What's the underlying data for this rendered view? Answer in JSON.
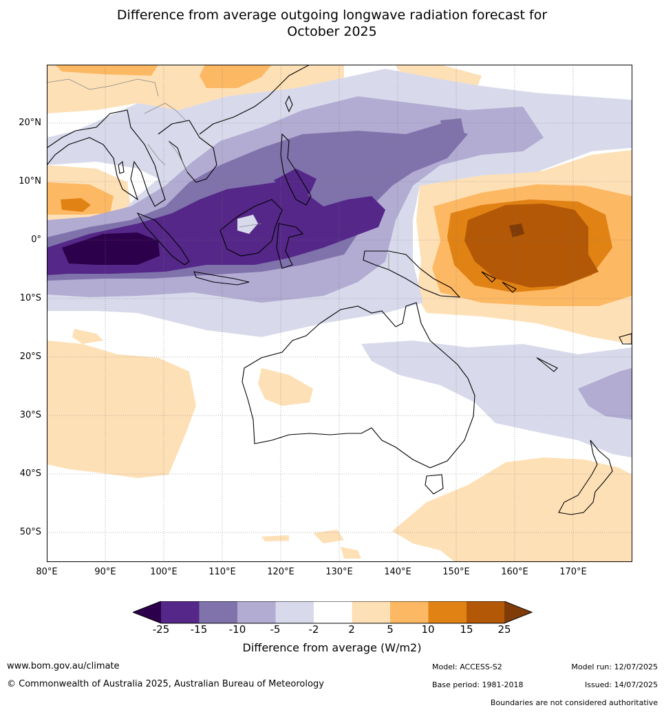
{
  "title_line1": "Difference from average outgoing longwave radiation forecast for",
  "title_line2": "October 2025",
  "map": {
    "lat_labels": [
      "20°N",
      "10°N",
      "0°",
      "10°S",
      "20°S",
      "30°S",
      "40°S",
      "50°S"
    ],
    "lon_labels": [
      "80°E",
      "90°E",
      "100°E",
      "110°E",
      "120°E",
      "130°E",
      "140°E",
      "150°E",
      "160°E",
      "170°E"
    ]
  },
  "colorbar": {
    "ticks": [
      "-25",
      "-15",
      "-10",
      "-5",
      "-2",
      "2",
      "5",
      "10",
      "15",
      "25"
    ],
    "colors": [
      "#2d004b",
      "#542788",
      "#8073ac",
      "#b2abd2",
      "#d8daeb",
      "#ffffff",
      "#fee0b6",
      "#fdb863",
      "#e08214",
      "#b35806",
      "#7f3b08"
    ],
    "label": "Difference from average (W/m2)"
  },
  "footer": {
    "website": "www.bom.gov.au/climate",
    "copyright": "© Commonwealth of Australia 2025, Australian Bureau of Meteorology",
    "model": "Model: ACCESS-S2",
    "base_period": "Base period: 1981-2018",
    "model_run": "Model run: 12/07/2025",
    "issued": "Issued: 14/07/2025",
    "boundaries_note": "Boundaries are not considered authoritative"
  }
}
